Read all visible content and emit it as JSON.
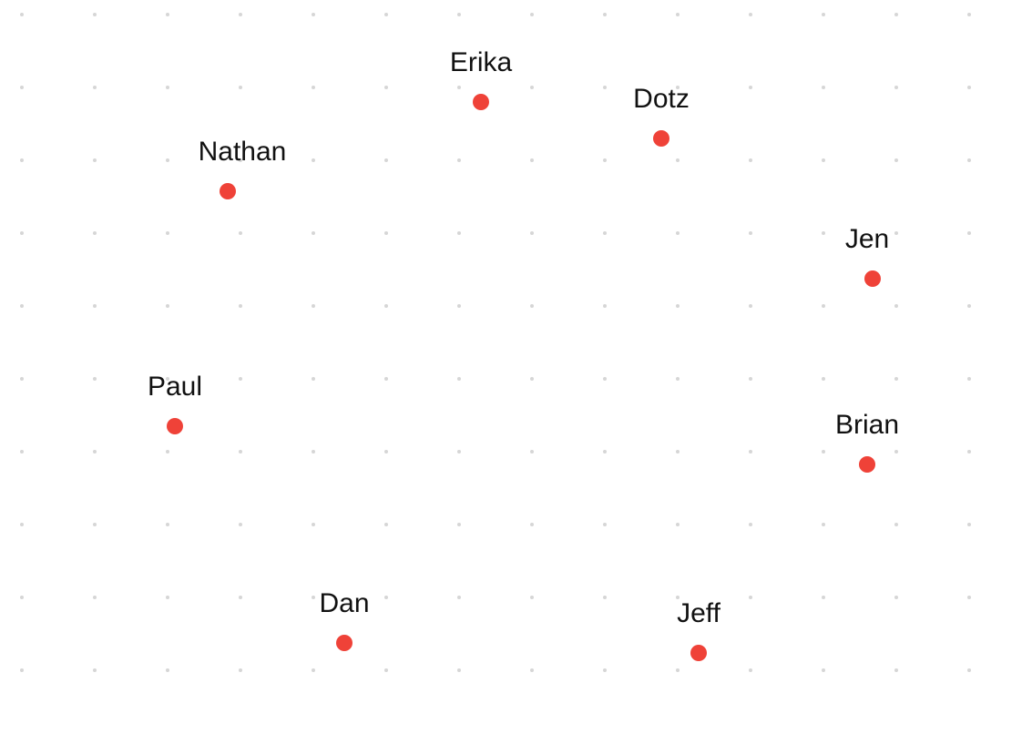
{
  "colors": {
    "background": "#ffffff",
    "grid_dot": "#d6d6d6",
    "node": "#ef4238",
    "label": "#111111"
  },
  "grid": {
    "visible": true,
    "style": "dots"
  },
  "nodes": [
    {
      "label": "Erika"
    },
    {
      "label": "Dotz"
    },
    {
      "label": "Nathan"
    },
    {
      "label": "Jen"
    },
    {
      "label": "Paul"
    },
    {
      "label": "Brian"
    },
    {
      "label": "Dan"
    },
    {
      "label": "Jeff"
    }
  ]
}
